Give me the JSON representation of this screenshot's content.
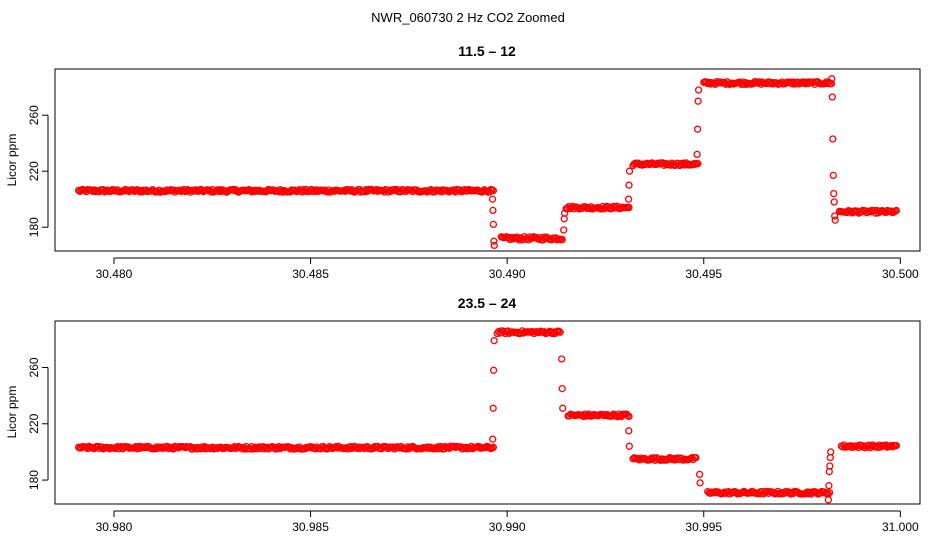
{
  "figure": {
    "title": "NWR_060730  2 Hz CO2 Zoomed"
  },
  "colors": {
    "points": "#ff0000",
    "axis": "#000000",
    "background": "#ffffff"
  },
  "chart_data": [
    {
      "type": "scatter",
      "title": "11.5 – 12",
      "xlabel": "",
      "ylabel": "Licor ppm",
      "xlim": [
        30.4785,
        30.5005
      ],
      "ylim": [
        163,
        293
      ],
      "x_ticks": [
        "30.480",
        "30.485",
        "30.490",
        "30.495",
        "30.500"
      ],
      "x_tick_values": [
        30.48,
        30.485,
        30.49,
        30.495,
        30.5
      ],
      "y_ticks": [
        "180",
        "220",
        "260"
      ],
      "y_tick_values": [
        180,
        220,
        260
      ],
      "grid": false,
      "marker": "open-circle",
      "series": [
        {
          "segments": [
            {
              "x0": 30.4791,
              "x1": 30.48965,
              "y": 206,
              "noise": 1.0
            },
            {
              "x0": 30.48985,
              "x1": 30.4914,
              "y": 172,
              "noise": 1.2
            },
            {
              "x0": 30.4915,
              "x1": 30.4931,
              "y": 194,
              "noise": 1.0
            },
            {
              "x0": 30.4932,
              "x1": 30.49485,
              "y": 225,
              "noise": 1.0
            },
            {
              "x0": 30.495,
              "x1": 30.49825,
              "y": 283,
              "noise": 1.0
            },
            {
              "x0": 30.49845,
              "x1": 30.4999,
              "y": 191,
              "noise": 1.0
            }
          ],
          "transitions": [
            {
              "x": 30.48965,
              "from": 206,
              "to": 168,
              "values": [
                200,
                192,
                182,
                170,
                167
              ]
            },
            {
              "x": 30.49145,
              "from": 172,
              "to": 194,
              "values": [
                178,
                186,
                190
              ]
            },
            {
              "x": 30.4931,
              "from": 194,
              "to": 225,
              "values": [
                200,
                210,
                220
              ]
            },
            {
              "x": 30.49485,
              "from": 225,
              "to": 283,
              "values": [
                232,
                250,
                270,
                278
              ]
            },
            {
              "x": 30.4983,
              "from": 283,
              "to": 185,
              "values": [
                286,
                273,
                243,
                217,
                204,
                198,
                188,
                185
              ]
            }
          ]
        }
      ]
    },
    {
      "type": "scatter",
      "title": "23.5 – 24",
      "xlabel": "",
      "ylabel": "Licor ppm",
      "xlim": [
        30.9785,
        31.0005
      ],
      "ylim": [
        163,
        293
      ],
      "x_ticks": [
        "30.980",
        "30.985",
        "30.990",
        "30.995",
        "31.000"
      ],
      "x_tick_values": [
        30.98,
        30.985,
        30.99,
        30.995,
        31.0
      ],
      "y_ticks": [
        "180",
        "220",
        "260"
      ],
      "y_tick_values": [
        180,
        220,
        260
      ],
      "grid": false,
      "marker": "open-circle",
      "series": [
        {
          "segments": [
            {
              "x0": 30.9791,
              "x1": 30.98965,
              "y": 203,
              "noise": 1.0
            },
            {
              "x0": 30.98975,
              "x1": 30.99135,
              "y": 285,
              "noise": 1.0
            },
            {
              "x0": 30.99155,
              "x1": 30.9931,
              "y": 226,
              "noise": 1.0
            },
            {
              "x0": 30.9932,
              "x1": 30.9948,
              "y": 195,
              "noise": 1.0
            },
            {
              "x0": 30.9951,
              "x1": 30.9982,
              "y": 171,
              "noise": 1.0
            },
            {
              "x0": 30.9985,
              "x1": 30.9999,
              "y": 204,
              "noise": 1.0
            }
          ],
          "transitions": [
            {
              "x": 30.98965,
              "from": 203,
              "to": 285,
              "values": [
                209,
                231,
                258,
                279
              ]
            },
            {
              "x": 30.9914,
              "from": 285,
              "to": 226,
              "values": [
                266,
                245,
                231
              ]
            },
            {
              "x": 30.9931,
              "from": 226,
              "to": 195,
              "values": [
                215,
                204
              ]
            },
            {
              "x": 30.9949,
              "from": 195,
              "to": 171,
              "values": [
                184,
                178
              ]
            },
            {
              "x": 30.9982,
              "from": 171,
              "to": 204,
              "values": [
                166,
                176,
                186,
                190,
                196,
                200
              ]
            }
          ]
        }
      ]
    }
  ]
}
